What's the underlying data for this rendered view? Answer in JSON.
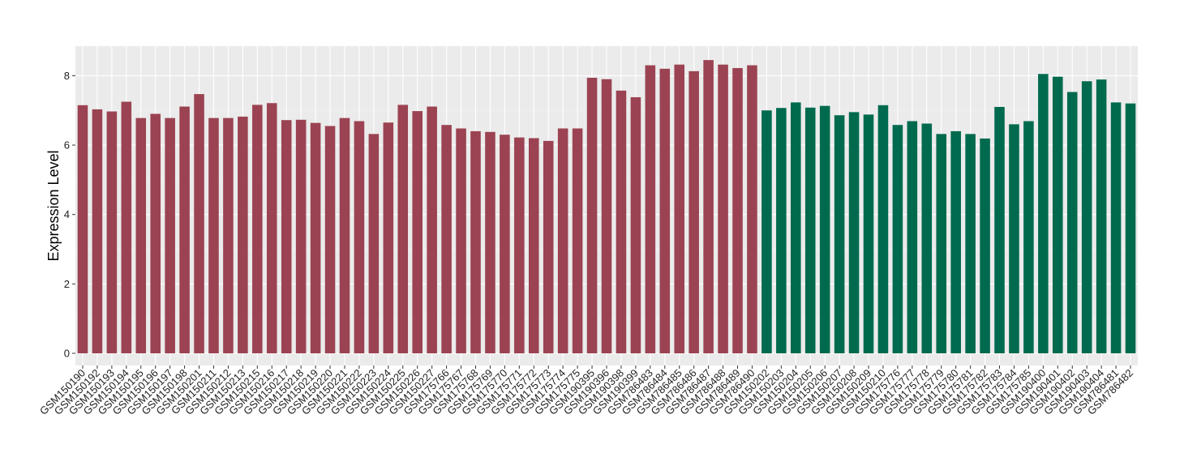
{
  "chart_data": {
    "type": "bar",
    "ylabel": "Expression Level",
    "xlabel": "",
    "ylim": [
      -0.35,
      8.85
    ],
    "yticks": [
      0,
      2,
      4,
      6,
      8
    ],
    "grid": true,
    "background": "#EBEBEB",
    "categories": [
      "GSM150190",
      "GSM150192",
      "GSM150193",
      "GSM150194",
      "GSM150195",
      "GSM150196",
      "GSM150197",
      "GSM150198",
      "GSM150201",
      "GSM150211",
      "GSM150212",
      "GSM150213",
      "GSM150215",
      "GSM150216",
      "GSM150217",
      "GSM150218",
      "GSM150219",
      "GSM150220",
      "GSM150221",
      "GSM150222",
      "GSM150223",
      "GSM150224",
      "GSM150225",
      "GSM150226",
      "GSM150227",
      "GSM175766",
      "GSM175767",
      "GSM175768",
      "GSM175769",
      "GSM175770",
      "GSM175771",
      "GSM175772",
      "GSM175773",
      "GSM175774",
      "GSM175775",
      "GSM190395",
      "GSM190396",
      "GSM190398",
      "GSM190399",
      "GSM786483",
      "GSM786484",
      "GSM786485",
      "GSM786486",
      "GSM786487",
      "GSM786488",
      "GSM786489",
      "GSM786490",
      "GSM150202",
      "GSM150203",
      "GSM150204",
      "GSM150205",
      "GSM150206",
      "GSM150207",
      "GSM150208",
      "GSM150209",
      "GSM150210",
      "GSM175776",
      "GSM175777",
      "GSM175778",
      "GSM175779",
      "GSM175780",
      "GSM175781",
      "GSM175782",
      "GSM175783",
      "GSM175784",
      "GSM175785",
      "GSM190400",
      "GSM190401",
      "GSM190402",
      "GSM190403",
      "GSM190404",
      "GSM786481",
      "GSM786482"
    ],
    "values": [
      7.15,
      7.03,
      6.97,
      7.25,
      6.78,
      6.9,
      6.78,
      7.11,
      7.47,
      6.78,
      6.78,
      6.82,
      7.16,
      7.21,
      6.72,
      6.73,
      6.64,
      6.55,
      6.78,
      6.69,
      6.32,
      6.65,
      7.16,
      6.98,
      7.11,
      6.58,
      6.48,
      6.4,
      6.38,
      6.3,
      6.22,
      6.2,
      6.12,
      6.48,
      6.48,
      7.94,
      7.9,
      7.57,
      7.38,
      8.3,
      8.2,
      8.32,
      8.13,
      8.45,
      8.32,
      8.22,
      8.3,
      7.0,
      7.07,
      7.23,
      7.08,
      7.13,
      6.86,
      6.95,
      6.88,
      7.15,
      6.58,
      6.69,
      6.62,
      6.32,
      6.4,
      6.32,
      6.19,
      7.1,
      6.6,
      6.69,
      8.05,
      7.97,
      7.53,
      7.84,
      7.89,
      7.23,
      7.2
    ],
    "colors": [
      "#9B4352",
      "#9B4352",
      "#9B4352",
      "#9B4352",
      "#9B4352",
      "#9B4352",
      "#9B4352",
      "#9B4352",
      "#9B4352",
      "#9B4352",
      "#9B4352",
      "#9B4352",
      "#9B4352",
      "#9B4352",
      "#9B4352",
      "#9B4352",
      "#9B4352",
      "#9B4352",
      "#9B4352",
      "#9B4352",
      "#9B4352",
      "#9B4352",
      "#9B4352",
      "#9B4352",
      "#9B4352",
      "#9B4352",
      "#9B4352",
      "#9B4352",
      "#9B4352",
      "#9B4352",
      "#9B4352",
      "#9B4352",
      "#9B4352",
      "#9B4352",
      "#9B4352",
      "#9B4352",
      "#9B4352",
      "#9B4352",
      "#9B4352",
      "#9B4352",
      "#9B4352",
      "#9B4352",
      "#9B4352",
      "#9B4352",
      "#9B4352",
      "#9B4352",
      "#9B4352",
      "#006A4E",
      "#006A4E",
      "#006A4E",
      "#006A4E",
      "#006A4E",
      "#006A4E",
      "#006A4E",
      "#006A4E",
      "#006A4E",
      "#006A4E",
      "#006A4E",
      "#006A4E",
      "#006A4E",
      "#006A4E",
      "#006A4E",
      "#006A4E",
      "#006A4E",
      "#006A4E",
      "#006A4E",
      "#006A4E",
      "#006A4E",
      "#006A4E",
      "#006A4E",
      "#006A4E",
      "#006A4E",
      "#006A4E"
    ]
  }
}
